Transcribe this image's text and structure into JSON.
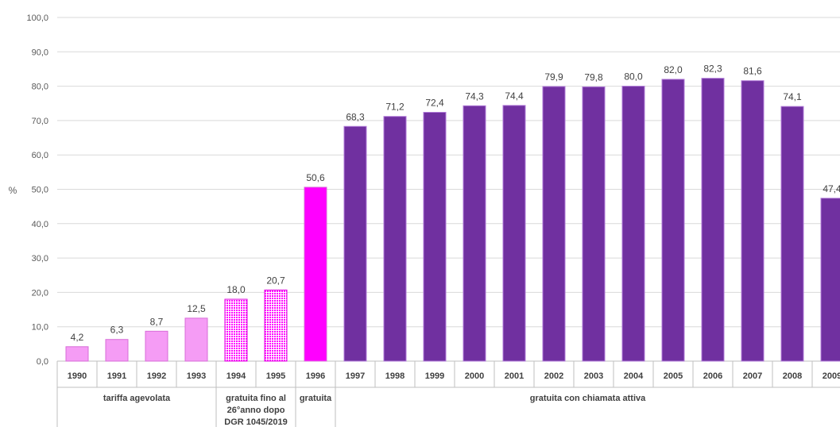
{
  "chart_data": {
    "type": "bar",
    "ylabel": "%",
    "ylim": [
      0,
      100
    ],
    "yticks": [
      "0,0",
      "10,0",
      "20,0",
      "30,0",
      "40,0",
      "50,0",
      "60,0",
      "70,0",
      "80,0",
      "90,0",
      "100,0"
    ],
    "grid": true,
    "categories": [
      "1990",
      "1991",
      "1992",
      "1993",
      "1994",
      "1995",
      "1996",
      "1997",
      "1998",
      "1999",
      "2000",
      "2001",
      "2002",
      "2003",
      "2004",
      "2005",
      "2006",
      "2007",
      "2008",
      "2009"
    ],
    "values": [
      4.2,
      6.3,
      8.7,
      12.5,
      18.0,
      20.7,
      50.6,
      68.3,
      71.2,
      72.4,
      74.3,
      74.4,
      79.9,
      79.8,
      80.0,
      82.0,
      82.3,
      81.6,
      74.1,
      47.4
    ],
    "value_labels": [
      "4,2",
      "6,3",
      "8,7",
      "12,5",
      "18,0",
      "20,7",
      "50,6",
      "68,3",
      "71,2",
      "72,4",
      "74,3",
      "74,4",
      "79,9",
      "79,8",
      "80,0",
      "82,0",
      "82,3",
      "81,6",
      "74,1",
      "47,4"
    ],
    "groups": [
      {
        "label": [
          "tariffa agevolata"
        ],
        "start": 0,
        "end": 3,
        "color": "#f59cf5",
        "pattern": "solid"
      },
      {
        "label": [
          "gratuita fino al",
          "26°anno dopo",
          "DGR 1045/2019"
        ],
        "start": 4,
        "end": 5,
        "color": "#ff33ff",
        "pattern": "dotted"
      },
      {
        "label": [
          "gratuita"
        ],
        "start": 6,
        "end": 6,
        "color": "#ff00ff",
        "pattern": "solid"
      },
      {
        "label": [
          "gratuita con chiamata attiva"
        ],
        "start": 7,
        "end": 19,
        "color": "#7030a0",
        "pattern": "solid"
      }
    ]
  }
}
